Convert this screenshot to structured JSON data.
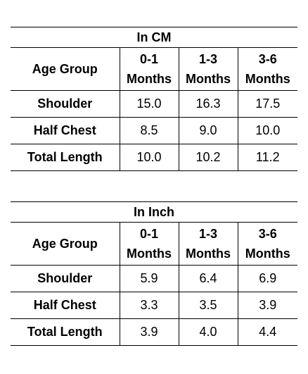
{
  "tables": [
    {
      "caption": "In CM",
      "header_label": "Age Group",
      "columns": [
        {
          "top": "0-1",
          "bottom": "Months"
        },
        {
          "top": "1-3",
          "bottom": "Months"
        },
        {
          "top": "3-6",
          "bottom": "Months"
        }
      ],
      "rows": [
        {
          "label": "Shoulder",
          "values": [
            "15.0",
            "16.3",
            "17.5"
          ]
        },
        {
          "label": "Half Chest",
          "values": [
            "8.5",
            "9.0",
            "10.0"
          ]
        },
        {
          "label": "Total Length",
          "values": [
            "10.0",
            "10.2",
            "11.2"
          ]
        }
      ]
    },
    {
      "caption": "In Inch",
      "header_label": "Age Group",
      "columns": [
        {
          "top": "0-1",
          "bottom": "Months"
        },
        {
          "top": "1-3",
          "bottom": "Months"
        },
        {
          "top": "3-6",
          "bottom": "Months"
        }
      ],
      "rows": [
        {
          "label": "Shoulder",
          "values": [
            "5.9",
            "6.4",
            "6.9"
          ]
        },
        {
          "label": "Half Chest",
          "values": [
            "3.3",
            "3.5",
            "3.9"
          ]
        },
        {
          "label": "Total Length",
          "values": [
            "3.9",
            "4.0",
            "4.4"
          ]
        }
      ]
    }
  ]
}
